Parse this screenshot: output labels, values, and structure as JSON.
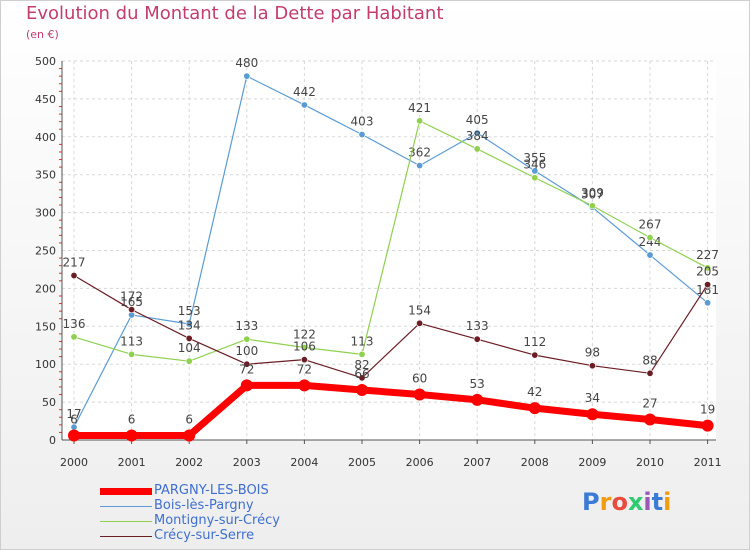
{
  "chart_data": {
    "type": "line",
    "title": "Evolution du Montant de la Dette par Habitant",
    "subtitle": "(en €)",
    "x": [
      "2000",
      "2001",
      "2002",
      "2003",
      "2004",
      "2005",
      "2006",
      "2007",
      "2008",
      "2009",
      "2010",
      "2011"
    ],
    "ylim": [
      0,
      500
    ],
    "yticks": [
      "0",
      "50",
      "100",
      "150",
      "200",
      "250",
      "300",
      "350",
      "400",
      "450",
      "500"
    ],
    "grid": true,
    "legend_position": "bottom-left",
    "series": [
      {
        "name": "PARGNY-LES-BOIS",
        "color": "#ff0000",
        "values": [
          6,
          6,
          6,
          72,
          72,
          66,
          60,
          53,
          42,
          34,
          27,
          19
        ]
      },
      {
        "name": "Bois-lès-Pargny",
        "color": "#5b9bd5",
        "values": [
          17,
          165,
          153,
          480,
          442,
          403,
          362,
          405,
          355,
          307,
          244,
          181
        ]
      },
      {
        "name": "Montigny-sur-Crécy",
        "color": "#8fd14f",
        "values": [
          136,
          113,
          104,
          133,
          122,
          113,
          421,
          384,
          346,
          309,
          267,
          227
        ]
      },
      {
        "name": "Crécy-sur-Serre",
        "color": "#6b1d24",
        "values": [
          217,
          172,
          134,
          100,
          106,
          82,
          154,
          133,
          112,
          98,
          88,
          205
        ]
      }
    ]
  },
  "logo": {
    "name": "proxiti-logo",
    "text": "Proxiti",
    "colors": [
      "#3a7bd5",
      "#f39c12",
      "#e74c3c",
      "#2ecc71",
      "#9b59b6"
    ]
  }
}
